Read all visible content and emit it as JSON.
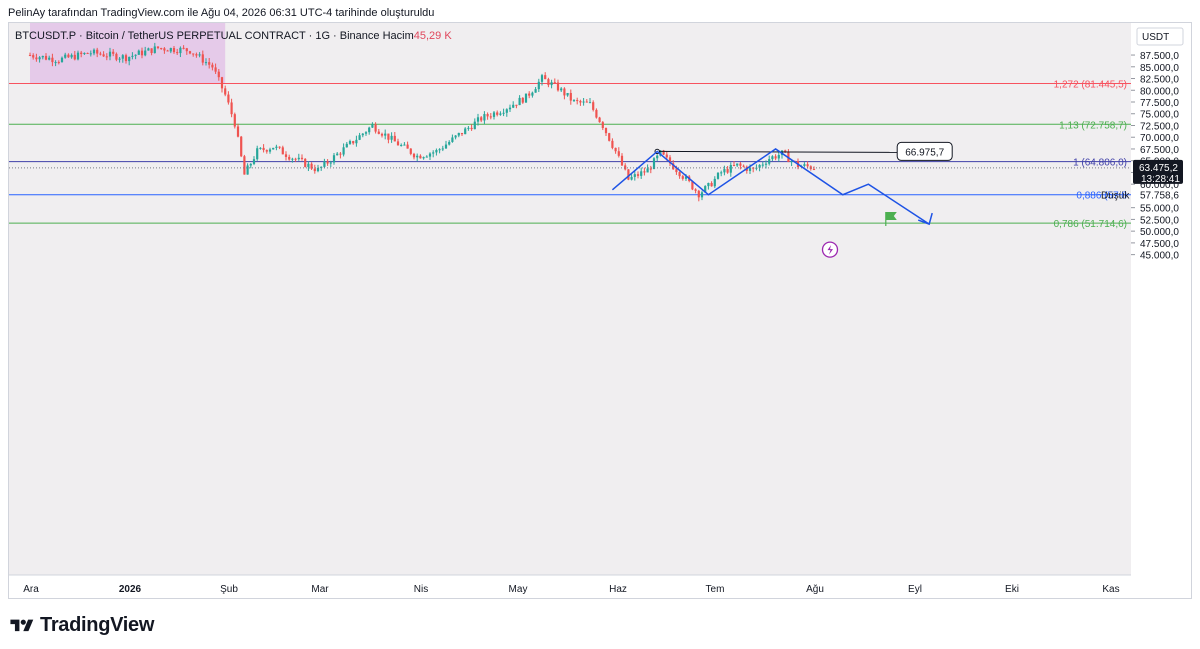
{
  "caption": "PelinAy tarafından TradingView.com ile Ağu 04, 2026 06:31 UTC-4 tarihinde oluşturuldu",
  "brand": "TradingView",
  "brand_icon": "tradingview-logo-icon",
  "legend": {
    "symbol": "BTCUSDT.P · Bitcoin / TetherUS PERPETUAL CONTRACT · 1G · Binance",
    "volume_label": "Hacim",
    "volume_value": "45,29 K"
  },
  "colors": {
    "up": "#26a69a",
    "down": "#ef5350",
    "pattern": "#1e53e5",
    "fib_1272": "#f7525f",
    "fib_113": "#4caf50",
    "fib_1": "#3f3fa8",
    "fib_0886": "#2962ff",
    "fib_0786": "#4caf50",
    "zone": "#e1bee7",
    "background": "#f0eef0"
  },
  "chart_data": {
    "type": "line",
    "currency": "USDT",
    "x_axis_labels": [
      "Ara",
      "2026",
      "Şub",
      "Mar",
      "Nis",
      "May",
      "Haz",
      "Tem",
      "Ağu",
      "Eyl",
      "Eki",
      "Kas"
    ],
    "y_axis_labels": [
      "87.500,0",
      "85.000,0",
      "82.500,0",
      "80.000,0",
      "77.500,0",
      "75.000,0",
      "72.500,0",
      "70.000,0",
      "67.500,0",
      "65.000,0",
      "62.500,0",
      "60.000,0",
      "55.000,0",
      "52.500,0",
      "50.000,0",
      "47.500,0",
      "45.000,0"
    ],
    "ylim": [
      43500,
      90000
    ],
    "price_path": {
      "x": [
        "2025-12-01",
        "2025-12-10",
        "2025-12-20",
        "2025-12-31",
        "2026-01-10",
        "2026-01-20",
        "2026-01-27",
        "2026-01-31",
        "2026-02-03",
        "2026-02-06",
        "2026-02-10",
        "2026-02-15",
        "2026-02-20",
        "2026-03-01",
        "2026-03-10",
        "2026-03-18",
        "2026-03-25",
        "2026-04-01",
        "2026-04-07",
        "2026-04-14",
        "2026-04-21",
        "2026-04-28",
        "2026-05-05",
        "2026-05-10",
        "2026-05-15",
        "2026-05-20",
        "2026-05-25",
        "2026-05-29",
        "2026-06-02",
        "2026-06-06",
        "2026-06-12",
        "2026-06-16",
        "2026-06-22",
        "2026-06-28",
        "2026-07-01",
        "2026-07-05",
        "2026-07-10",
        "2026-07-15",
        "2026-07-20",
        "2026-07-24",
        "2026-07-29",
        "2026-08-04"
      ],
      "y": [
        87500,
        86500,
        88000,
        87000,
        89000,
        88500,
        85000,
        79000,
        73000,
        62000,
        67000,
        68000,
        66000,
        63000,
        68000,
        72500,
        69000,
        66000,
        67000,
        70500,
        74000,
        76000,
        78500,
        82500,
        80500,
        77500,
        77000,
        72500,
        67000,
        61000,
        63000,
        66500,
        62500,
        58000,
        59500,
        62500,
        64000,
        63000,
        65500,
        66500,
        64000,
        63475
      ]
    },
    "fib_levels": [
      {
        "label": "1,272 (81.445,5)",
        "value": 81445.5
      },
      {
        "label": "1,13 (72.758,7)",
        "value": 72758.7
      },
      {
        "label": "1 (64.806,0)",
        "value": 64806.0
      },
      {
        "label": "0,886 (57.8",
        "value": 57758.6
      },
      {
        "label": "0,786 (51.714,6)",
        "value": 51714.6
      }
    ],
    "zone": {
      "x_start": "2025-12-01",
      "x_end": "2026-01-31",
      "y_from": 81445.5,
      "y_to": 90000
    },
    "pattern": {
      "x": [
        "2026-06-01",
        "2026-06-15",
        "2026-07-01",
        "2026-07-22",
        "2026-08-12",
        "2026-08-20",
        "2026-09-08"
      ],
      "y": [
        58800,
        66975.7,
        57758.6,
        67500,
        57758.6,
        60000,
        51500
      ]
    },
    "horizontal_ray": {
      "x_start": "2026-06-15",
      "x_end": "2026-08-29",
      "value": 66975.7,
      "label": "66.975,7"
    },
    "current_price": {
      "value": 63475.2,
      "label": "63.475,2",
      "countdown": "13:28:41"
    },
    "low_marker": {
      "label": "Düşük",
      "value_label": "57.758,6"
    },
    "flag_date": "2026-08-27",
    "flag_price": 52800,
    "event_date": "2026-08-08",
    "event_price": 45000
  }
}
